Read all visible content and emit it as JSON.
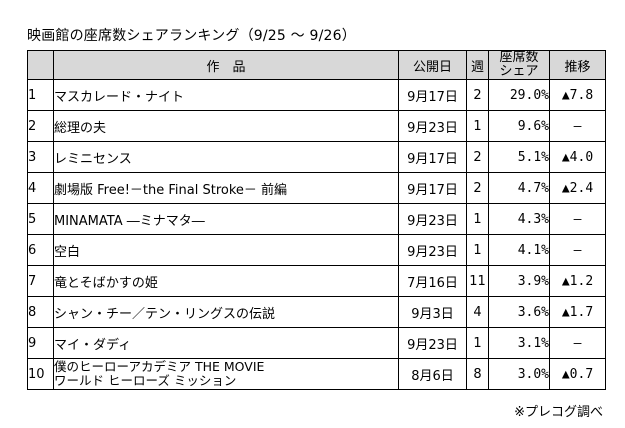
{
  "title": "映画館の座席数シェアランキング（9/25 ～ 9/26）",
  "headers": {
    "no": "",
    "title": "作　品",
    "date": "公開日",
    "week": "週",
    "share_line1": "座席数",
    "share_line2": "シェア",
    "trend": "推移"
  },
  "rows": [
    {
      "no": "1",
      "title": "マスカレード・ナイト",
      "date": "9月17日",
      "week": "2",
      "share": "29.0%",
      "trend": "▲7.8"
    },
    {
      "no": "2",
      "title": "総理の夫",
      "date": "9月23日",
      "week": "1",
      "share": "9.6%",
      "trend": "—"
    },
    {
      "no": "3",
      "title": "レミニセンス",
      "date": "9月17日",
      "week": "2",
      "share": "5.1%",
      "trend": "▲4.0"
    },
    {
      "no": "4",
      "title": "劇場版 Free!－the Final Stroke－ 前編",
      "date": "9月17日",
      "week": "2",
      "share": "4.7%",
      "trend": "▲2.4"
    },
    {
      "no": "5",
      "title": "MINAMATA ―ミナマタ―",
      "date": "9月23日",
      "week": "1",
      "share": "4.3%",
      "trend": "—"
    },
    {
      "no": "6",
      "title": "空白",
      "date": "9月23日",
      "week": "1",
      "share": "4.1%",
      "trend": "—"
    },
    {
      "no": "7",
      "title": "竜とそばかすの姫",
      "date": "7月16日",
      "week": "11",
      "share": "3.9%",
      "trend": "▲1.2"
    },
    {
      "no": "8",
      "title": "シャン・チー／テン・リングスの伝説",
      "date": "9月3日",
      "week": "4",
      "share": "3.6%",
      "trend": "▲1.7"
    },
    {
      "no": "9",
      "title": "マイ・ダディ",
      "date": "9月23日",
      "week": "1",
      "share": "3.1%",
      "trend": "—"
    },
    {
      "no": "10",
      "title": "僕のヒーローアカデミア THE MOVIE",
      "title2": "ワールド ヒーローズ ミッション",
      "date": "8月6日",
      "week": "8",
      "share": "3.0%",
      "trend": "▲0.7"
    }
  ],
  "note": "※プレコグ調べ"
}
